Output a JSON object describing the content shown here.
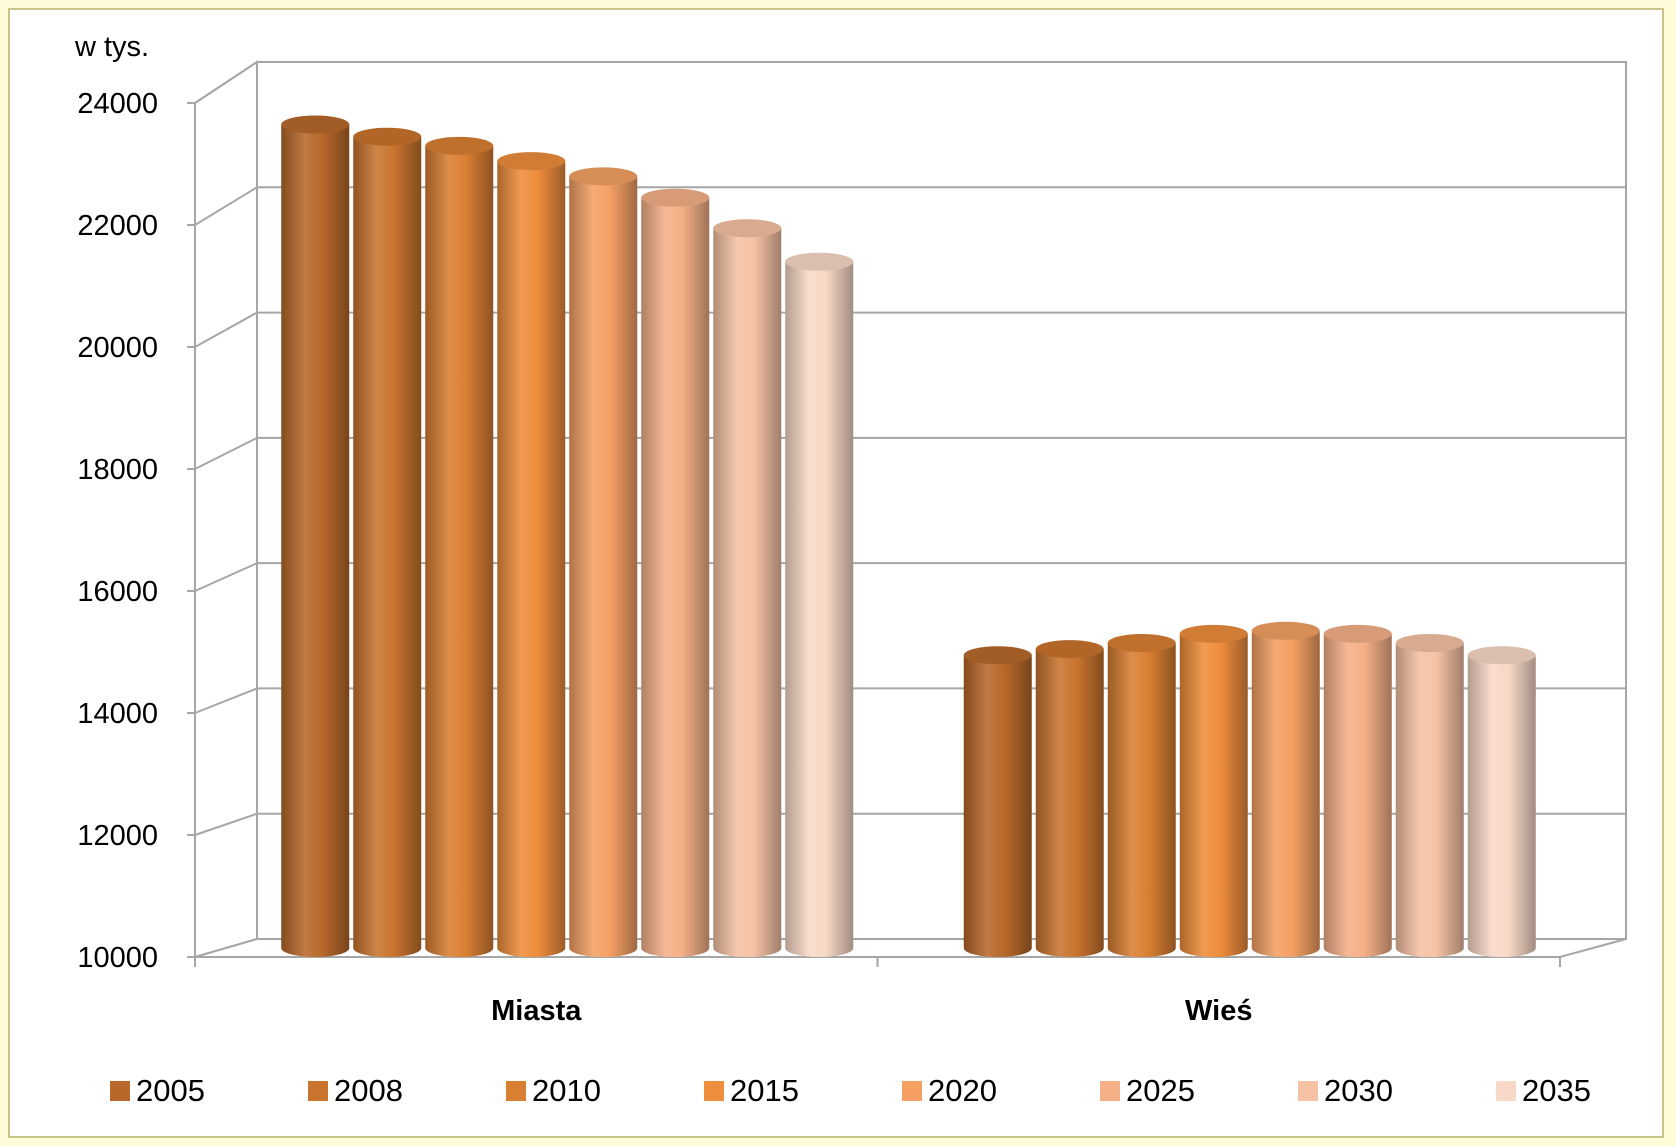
{
  "chart_data": {
    "type": "bar",
    "title": "",
    "unit_label": "w tys.",
    "xlabel": "",
    "ylabel": "",
    "ylim": [
      10000,
      24000
    ],
    "yticks": [
      10000,
      12000,
      14000,
      16000,
      18000,
      20000,
      22000,
      24000
    ],
    "categories": [
      "Miasta",
      "Wieś"
    ],
    "series": [
      {
        "name": "2005",
        "color": "#b8682a",
        "values": [
          23500,
          14800
        ]
      },
      {
        "name": "2008",
        "color": "#c9742e",
        "values": [
          23300,
          14900
        ]
      },
      {
        "name": "2010",
        "color": "#d97f32",
        "values": [
          23150,
          15000
        ]
      },
      {
        "name": "2015",
        "color": "#ee8d3c",
        "values": [
          22900,
          15150
        ]
      },
      {
        "name": "2020",
        "color": "#f4a062",
        "values": [
          22650,
          15200
        ]
      },
      {
        "name": "2025",
        "color": "#f5b088",
        "values": [
          22300,
          15150
        ]
      },
      {
        "name": "2030",
        "color": "#f6c2a4",
        "values": [
          21800,
          15000
        ]
      },
      {
        "name": "2035",
        "color": "#f8d8c6",
        "values": [
          21250,
          14800
        ]
      }
    ],
    "grid": true,
    "legend_position": "bottom",
    "style": "3d-cylinder"
  }
}
